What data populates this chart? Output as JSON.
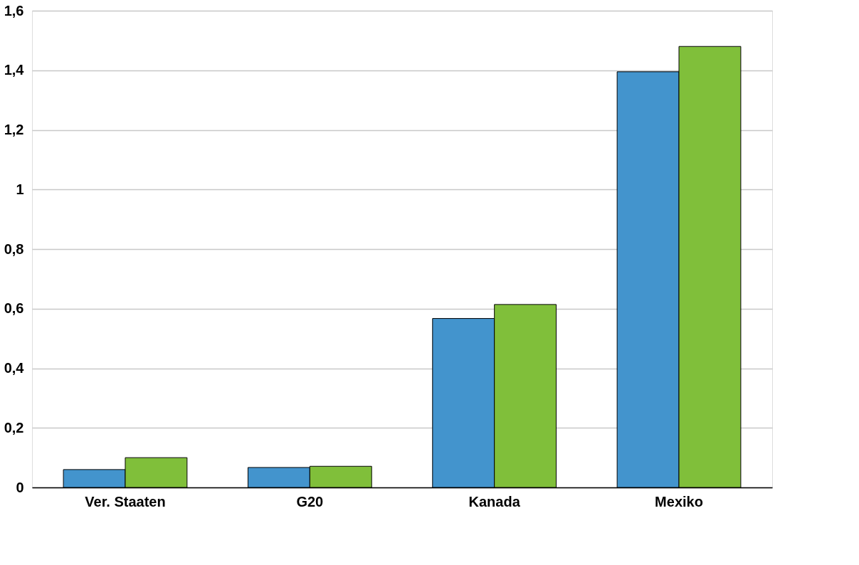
{
  "chart_data": {
    "type": "bar",
    "categories": [
      "Ver. Staaten",
      "G20",
      "Kanada",
      "Mexiko"
    ],
    "series": [
      {
        "color": "#4394cd",
        "values": [
          0.06,
          0.067,
          0.567,
          1.395
        ]
      },
      {
        "color": "#80bf3a",
        "values": [
          0.1,
          0.071,
          0.614,
          1.48
        ]
      }
    ],
    "ylim": [
      0,
      1.6
    ],
    "yticks": [
      0,
      {
        "value": 0.2,
        "label": "0,2"
      },
      {
        "value": 0.4,
        "label": "0,4"
      },
      {
        "value": 0.6,
        "label": "0,6"
      },
      {
        "value": 0.8,
        "label": "0,8"
      },
      1,
      {
        "value": 1.2,
        "label": "1,2"
      },
      {
        "value": 1.4,
        "label": "1,4"
      },
      {
        "value": 1.6,
        "label": "1,6"
      }
    ],
    "grid": "y",
    "legend": false
  }
}
